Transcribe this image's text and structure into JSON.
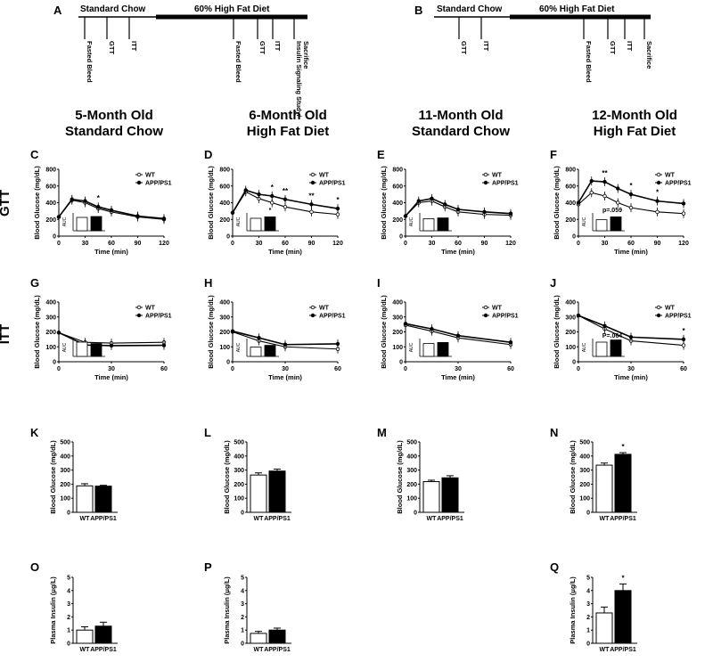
{
  "timelines": [
    {
      "panel": "A",
      "segments": [
        {
          "label": "Standard Chow",
          "style": "thin"
        },
        {
          "label": "60% High Fat Diet",
          "style": "thick"
        }
      ],
      "events": [
        "Fasted Bleed",
        "GTT",
        "ITT",
        "Fasted Bleed",
        "GTT",
        "ITT",
        "Insulin Signaling Study/Sacrifice"
      ]
    },
    {
      "panel": "B",
      "segments": [
        {
          "label": "Standard Chow",
          "style": "thin"
        },
        {
          "label": "60% High Fat Diet",
          "style": "thick"
        }
      ],
      "events": [
        "GTT",
        "ITT",
        "Fasted Bleed",
        "GTT",
        "ITT",
        "Sacrifice"
      ]
    }
  ],
  "columns": [
    {
      "line1": "5-Month Old",
      "line2": "Standard Chow"
    },
    {
      "line1": "6-Month Old",
      "line2": "High Fat Diet"
    },
    {
      "line1": "11-Month Old",
      "line2": "Standard Chow"
    },
    {
      "line1": "12-Month Old",
      "line2": "High Fat Diet"
    }
  ],
  "row_labels": {
    "gtt": "GTT",
    "itt": "ITT"
  },
  "colors": {
    "wt": "#ffffff",
    "app": "#000000",
    "axis": "#000000"
  },
  "chart_data": [
    {
      "panel": "C",
      "type": "line",
      "xlabel": "Time (min)",
      "ylabel": "Blood Glucose (mg/dL)",
      "xticks": [
        0,
        30,
        60,
        90,
        120
      ],
      "yticks": [
        0,
        200,
        400,
        600,
        800
      ],
      "xlim": [
        0,
        120
      ],
      "ylim": [
        0,
        800
      ],
      "x": [
        0,
        15,
        30,
        45,
        60,
        90,
        120
      ],
      "series": [
        {
          "name": "WT",
          "marker": "open",
          "values": [
            230,
            430,
            400,
            330,
            290,
            230,
            200
          ]
        },
        {
          "name": "APP/PS1",
          "marker": "filled",
          "values": [
            230,
            440,
            420,
            350,
            310,
            240,
            210
          ]
        }
      ],
      "annotations": [
        {
          "text": "*",
          "x": 45
        }
      ],
      "inset": {
        "ylabel": "AUC",
        "bars": [
          {
            "name": "WT",
            "value": 0.75
          },
          {
            "name": "APP/PS1",
            "value": 0.8
          }
        ],
        "annotation": ""
      }
    },
    {
      "panel": "D",
      "type": "line",
      "xlabel": "Time (min)",
      "ylabel": "Blood Glucose (mg/dL)",
      "xticks": [
        0,
        30,
        60,
        90,
        120
      ],
      "yticks": [
        0,
        200,
        400,
        600,
        800
      ],
      "xlim": [
        0,
        120
      ],
      "ylim": [
        0,
        800
      ],
      "x": [
        0,
        15,
        30,
        45,
        60,
        90,
        120
      ],
      "series": [
        {
          "name": "WT",
          "marker": "open",
          "values": [
            280,
            530,
            450,
            400,
            350,
            290,
            260
          ]
        },
        {
          "name": "APP/PS1",
          "marker": "filled",
          "values": [
            280,
            550,
            500,
            480,
            440,
            380,
            330
          ]
        }
      ],
      "annotations": [
        {
          "text": "*",
          "x": 45
        },
        {
          "text": "**",
          "x": 60
        },
        {
          "text": "**",
          "x": 90
        },
        {
          "text": "*",
          "x": 120
        }
      ],
      "inset": {
        "ylabel": "AUC",
        "bars": [
          {
            "name": "WT",
            "value": 0.7
          },
          {
            "name": "APP/PS1",
            "value": 0.78
          }
        ],
        "annotation": "*"
      }
    },
    {
      "panel": "E",
      "type": "line",
      "xlabel": "Time (min)",
      "ylabel": "Blood Glucose (mg/dL)",
      "xticks": [
        0,
        30,
        60,
        90,
        120
      ],
      "yticks": [
        0,
        200,
        400,
        600,
        800
      ],
      "xlim": [
        0,
        120
      ],
      "ylim": [
        0,
        800
      ],
      "x": [
        0,
        15,
        30,
        45,
        60,
        90,
        120
      ],
      "series": [
        {
          "name": "WT",
          "marker": "open",
          "values": [
            240,
            400,
            420,
            350,
            290,
            260,
            250
          ]
        },
        {
          "name": "APP/PS1",
          "marker": "filled",
          "values": [
            240,
            420,
            450,
            380,
            320,
            290,
            270
          ]
        }
      ],
      "annotations": [],
      "inset": {
        "ylabel": "AUC",
        "bars": [
          {
            "name": "WT",
            "value": 0.68
          },
          {
            "name": "APP/PS1",
            "value": 0.72
          }
        ],
        "annotation": ""
      }
    },
    {
      "panel": "F",
      "type": "line",
      "xlabel": "Time (min)",
      "ylabel": "Blood Glucose (mg/dL)",
      "xticks": [
        0,
        30,
        60,
        90,
        120
      ],
      "yticks": [
        0,
        200,
        400,
        600,
        800
      ],
      "xlim": [
        0,
        120
      ],
      "ylim": [
        0,
        800
      ],
      "x": [
        0,
        15,
        30,
        45,
        60,
        90,
        120
      ],
      "series": [
        {
          "name": "WT",
          "marker": "open",
          "values": [
            380,
            520,
            480,
            400,
            340,
            290,
            270
          ]
        },
        {
          "name": "APP/PS1",
          "marker": "filled",
          "values": [
            400,
            660,
            650,
            570,
            500,
            420,
            390
          ]
        }
      ],
      "annotations": [
        {
          "text": "**",
          "x": 30
        },
        {
          "text": "*",
          "x": 60
        },
        {
          "text": "*",
          "x": 90
        }
      ],
      "inset": {
        "ylabel": "AUC",
        "bars": [
          {
            "name": "WT",
            "value": 0.62
          },
          {
            "name": "APP/PS1",
            "value": 0.78
          }
        ],
        "annotation": "p=.059"
      }
    },
    {
      "panel": "G",
      "type": "line",
      "xlabel": "Time (min)",
      "ylabel": "Blood Glucose (mg/dL)",
      "xticks": [
        0,
        30,
        60
      ],
      "yticks": [
        0,
        100,
        200,
        300,
        400
      ],
      "xlim": [
        0,
        60
      ],
      "ylim": [
        0,
        400
      ],
      "x": [
        0,
        15,
        30,
        60
      ],
      "series": [
        {
          "name": "WT",
          "marker": "open",
          "values": [
            195,
            130,
            125,
            130
          ]
        },
        {
          "name": "APP/PS1",
          "marker": "filled",
          "values": [
            195,
            112,
            108,
            110
          ]
        }
      ],
      "annotations": [],
      "inset": {
        "ylabel": "AUC",
        "bars": [
          {
            "name": "WT",
            "value": 0.8
          },
          {
            "name": "APP/PS1",
            "value": 0.72
          }
        ],
        "annotation": ""
      }
    },
    {
      "panel": "H",
      "type": "line",
      "xlabel": "Time (min)",
      "ylabel": "Blood Glucose (mg/dL)",
      "xticks": [
        0,
        30,
        60
      ],
      "yticks": [
        0,
        100,
        200,
        300,
        400
      ],
      "xlim": [
        0,
        60
      ],
      "ylim": [
        0,
        400
      ],
      "x": [
        0,
        15,
        30,
        60
      ],
      "series": [
        {
          "name": "WT",
          "marker": "open",
          "values": [
            200,
            140,
            100,
            85
          ]
        },
        {
          "name": "APP/PS1",
          "marker": "filled",
          "values": [
            205,
            160,
            115,
            120
          ]
        }
      ],
      "annotations": [],
      "inset": {
        "ylabel": "AUC",
        "bars": [
          {
            "name": "WT",
            "value": 0.52
          },
          {
            "name": "APP/PS1",
            "value": 0.62
          }
        ],
        "annotation": ""
      }
    },
    {
      "panel": "I",
      "type": "line",
      "xlabel": "Time (min)",
      "ylabel": "Blood Glucose (mg/dL)",
      "xticks": [
        0,
        30,
        60
      ],
      "yticks": [
        0,
        100,
        200,
        300,
        400
      ],
      "xlim": [
        0,
        60
      ],
      "ylim": [
        0,
        400
      ],
      "x": [
        0,
        15,
        30,
        60
      ],
      "series": [
        {
          "name": "WT",
          "marker": "open",
          "values": [
            245,
            205,
            160,
            115
          ]
        },
        {
          "name": "APP/PS1",
          "marker": "filled",
          "values": [
            255,
            220,
            175,
            130
          ]
        }
      ],
      "annotations": [],
      "inset": {
        "ylabel": "AUC",
        "bars": [
          {
            "name": "WT",
            "value": 0.72
          },
          {
            "name": "APP/PS1",
            "value": 0.78
          }
        ],
        "annotation": ""
      }
    },
    {
      "panel": "J",
      "type": "line",
      "xlabel": "Time (min)",
      "ylabel": "Blood Glucose (mg/dL)",
      "xticks": [
        0,
        30,
        60
      ],
      "yticks": [
        0,
        100,
        200,
        300,
        400
      ],
      "xlim": [
        0,
        60
      ],
      "ylim": [
        0,
        400
      ],
      "x": [
        0,
        15,
        30,
        60
      ],
      "series": [
        {
          "name": "WT",
          "marker": "open",
          "values": [
            310,
            220,
            140,
            110
          ]
        },
        {
          "name": "APP/PS1",
          "marker": "filled",
          "values": [
            310,
            240,
            165,
            150
          ]
        }
      ],
      "annotations": [
        {
          "text": "*",
          "x": 60
        }
      ],
      "inset": {
        "ylabel": "AUC",
        "bars": [
          {
            "name": "WT",
            "value": 0.8
          },
          {
            "name": "APP/PS1",
            "value": 0.92
          }
        ],
        "annotation": "P=.064"
      }
    },
    {
      "panel": "K",
      "type": "bar",
      "ylabel": "Blood Glucose (mg/dL)",
      "yticks": [
        0,
        100,
        200,
        300,
        400,
        500
      ],
      "ylim": [
        0,
        500
      ],
      "categories": [
        "WT",
        "APP/PS1"
      ],
      "values": [
        188,
        186
      ],
      "errors": [
        15,
        6
      ],
      "annotation": ""
    },
    {
      "panel": "L",
      "type": "bar",
      "ylabel": "Blood Glucose (mg/dL)",
      "yticks": [
        0,
        100,
        200,
        300,
        400,
        500
      ],
      "ylim": [
        0,
        500
      ],
      "categories": [
        "WT",
        "APP/PS1"
      ],
      "values": [
        265,
        293
      ],
      "errors": [
        15,
        14
      ],
      "annotation": ""
    },
    {
      "panel": "M",
      "type": "bar",
      "ylabel": "Blood Glucose (mg/dL)",
      "yticks": [
        0,
        100,
        200,
        300,
        400,
        500
      ],
      "ylim": [
        0,
        500
      ],
      "categories": [
        "WT",
        "APP/PS1"
      ],
      "values": [
        218,
        245
      ],
      "errors": [
        10,
        15
      ],
      "annotation": ""
    },
    {
      "panel": "N",
      "type": "bar",
      "ylabel": "Blood Glucose (mg/dL)",
      "yticks": [
        0,
        100,
        200,
        300,
        400,
        500
      ],
      "ylim": [
        0,
        500
      ],
      "categories": [
        "WT",
        "APP/PS1"
      ],
      "values": [
        335,
        412
      ],
      "errors": [
        15,
        12
      ],
      "annotation": "*"
    },
    {
      "panel": "O",
      "type": "bar",
      "ylabel": "Plasma Insulin (μg/L)",
      "yticks": [
        0,
        1,
        2,
        3,
        4,
        5
      ],
      "ylim": [
        0,
        5
      ],
      "categories": [
        "WT",
        "APP/PS1"
      ],
      "values": [
        1.0,
        1.3
      ],
      "errors": [
        0.25,
        0.3
      ],
      "annotation": ""
    },
    {
      "panel": "P",
      "type": "bar",
      "ylabel": "Plasma Insulin (μg/L)",
      "yticks": [
        0,
        1,
        2,
        3,
        4,
        5
      ],
      "ylim": [
        0,
        5
      ],
      "categories": [
        "WT",
        "APP/PS1"
      ],
      "values": [
        0.75,
        1.0
      ],
      "errors": [
        0.15,
        0.15
      ],
      "annotation": ""
    },
    {
      "panel": "Q",
      "type": "bar",
      "ylabel": "Plasma Insulin (μg/L)",
      "yticks": [
        0,
        1,
        2,
        3,
        4,
        5
      ],
      "ylim": [
        0,
        5
      ],
      "categories": [
        "WT",
        "APP/PS1"
      ],
      "values": [
        2.3,
        4.0
      ],
      "errors": [
        0.45,
        0.5
      ],
      "annotation": "*"
    }
  ]
}
